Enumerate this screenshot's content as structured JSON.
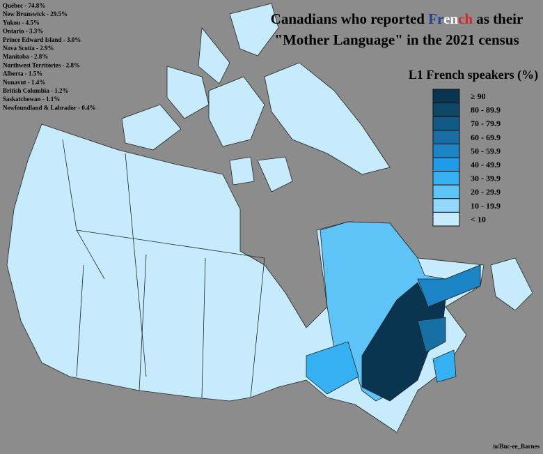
{
  "title": {
    "line1_start": "Canadians who reported ",
    "french": [
      {
        "text": "Fr",
        "color": "#1f3f8f"
      },
      {
        "text": "en",
        "color": "#ffffff"
      },
      {
        "text": "ch",
        "color": "#d7262e"
      }
    ],
    "line1_end": " as their",
    "line2": "\"Mother Language\" in the 2021 census"
  },
  "stats": [
    "Québec - 74.8%",
    "New Brunswick - 29.5%",
    "Yukon - 4.5%",
    "Ontario - 3.3%",
    "Prince Edward Island - 3.0%",
    "Nova Scotia - 2.9%",
    "Manitoba - 2.8%",
    "Northwest Territories - 2.8%",
    "Alberta - 1.5%",
    "Nunavut - 1.4%",
    "British Columbia - 1.2%",
    "Saskatchewan - 1.1%",
    "Newfoundland & Labrador - 0.4%"
  ],
  "legend": {
    "title": "L1 French speakers (%)",
    "items": [
      {
        "label": "≥ 90",
        "color": "#0a3550"
      },
      {
        "label": "80 - 89.9",
        "color": "#0e4668"
      },
      {
        "label": "70 - 79.9",
        "color": "#125a85"
      },
      {
        "label": "60 - 69.9",
        "color": "#166ea3"
      },
      {
        "label": "50 - 59.9",
        "color": "#1a84c6"
      },
      {
        "label": "40 - 49.9",
        "color": "#1f9be6"
      },
      {
        "label": "30 - 39.9",
        "color": "#34b0f3"
      },
      {
        "label": "20 - 29.9",
        "color": "#5ec3f6"
      },
      {
        "label": "10 - 19.9",
        "color": "#93d7f9"
      },
      {
        "label": "< 10",
        "color": "#c6ebfd"
      }
    ]
  },
  "credit": "/u/Buc-ee_Barnes"
}
